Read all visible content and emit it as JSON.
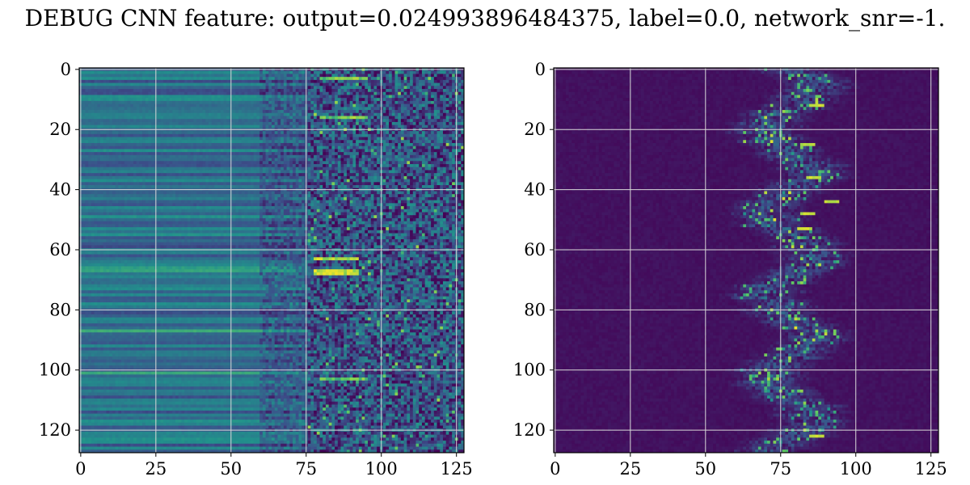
{
  "figure": {
    "title": "DEBUG CNN feature: output=0.024993896484375, label=0.0, network_snr=-1."
  },
  "chart_data": [
    {
      "type": "heatmap",
      "title": "",
      "xlabel": "",
      "ylabel": "",
      "rows": 128,
      "cols": 128,
      "xlim": [
        -0.5,
        127.5
      ],
      "ylim": [
        127.5,
        -0.5
      ],
      "y_inverted": true,
      "colormap": "viridis",
      "grid": true,
      "xticks": [
        0,
        25,
        50,
        75,
        100,
        125
      ],
      "yticks": [
        0,
        20,
        40,
        60,
        80,
        100,
        120
      ],
      "xtick_labels": [
        "0",
        "25",
        "50",
        "75",
        "100",
        "125"
      ],
      "ytick_labels": [
        "0",
        "20",
        "40",
        "60",
        "80",
        "100",
        "120"
      ],
      "description_of_values": "Columns 0-70 show smooth horizontal bands of mid values (~0.3-0.5) with bright rows near y=87 and y=101; columns ~75-127 are noisy with bright spots around x=80-90, y=63-68."
    },
    {
      "type": "heatmap",
      "title": "",
      "xlabel": "",
      "ylabel": "",
      "rows": 128,
      "cols": 128,
      "xlim": [
        -0.5,
        127.5
      ],
      "ylim": [
        127.5,
        -0.5
      ],
      "y_inverted": true,
      "colormap": "viridis",
      "grid": true,
      "xticks": [
        0,
        25,
        50,
        75,
        100,
        125
      ],
      "yticks": [
        0,
        20,
        40,
        60,
        80,
        100,
        120
      ],
      "xtick_labels": [
        "0",
        "25",
        "50",
        "75",
        "100",
        "125"
      ],
      "ytick_labels": [
        "0",
        "20",
        "40",
        "60",
        "80",
        "100",
        "120"
      ],
      "description_of_values": "Mostly dark (~0.0-0.1) for columns 0-45; sparse horizontal streaks of higher values concentrated around columns 70-100, brightest near x=85-90."
    }
  ],
  "colors": {
    "grid": "#d9d9d9",
    "axes": "#000000",
    "background": "#ffffff"
  }
}
